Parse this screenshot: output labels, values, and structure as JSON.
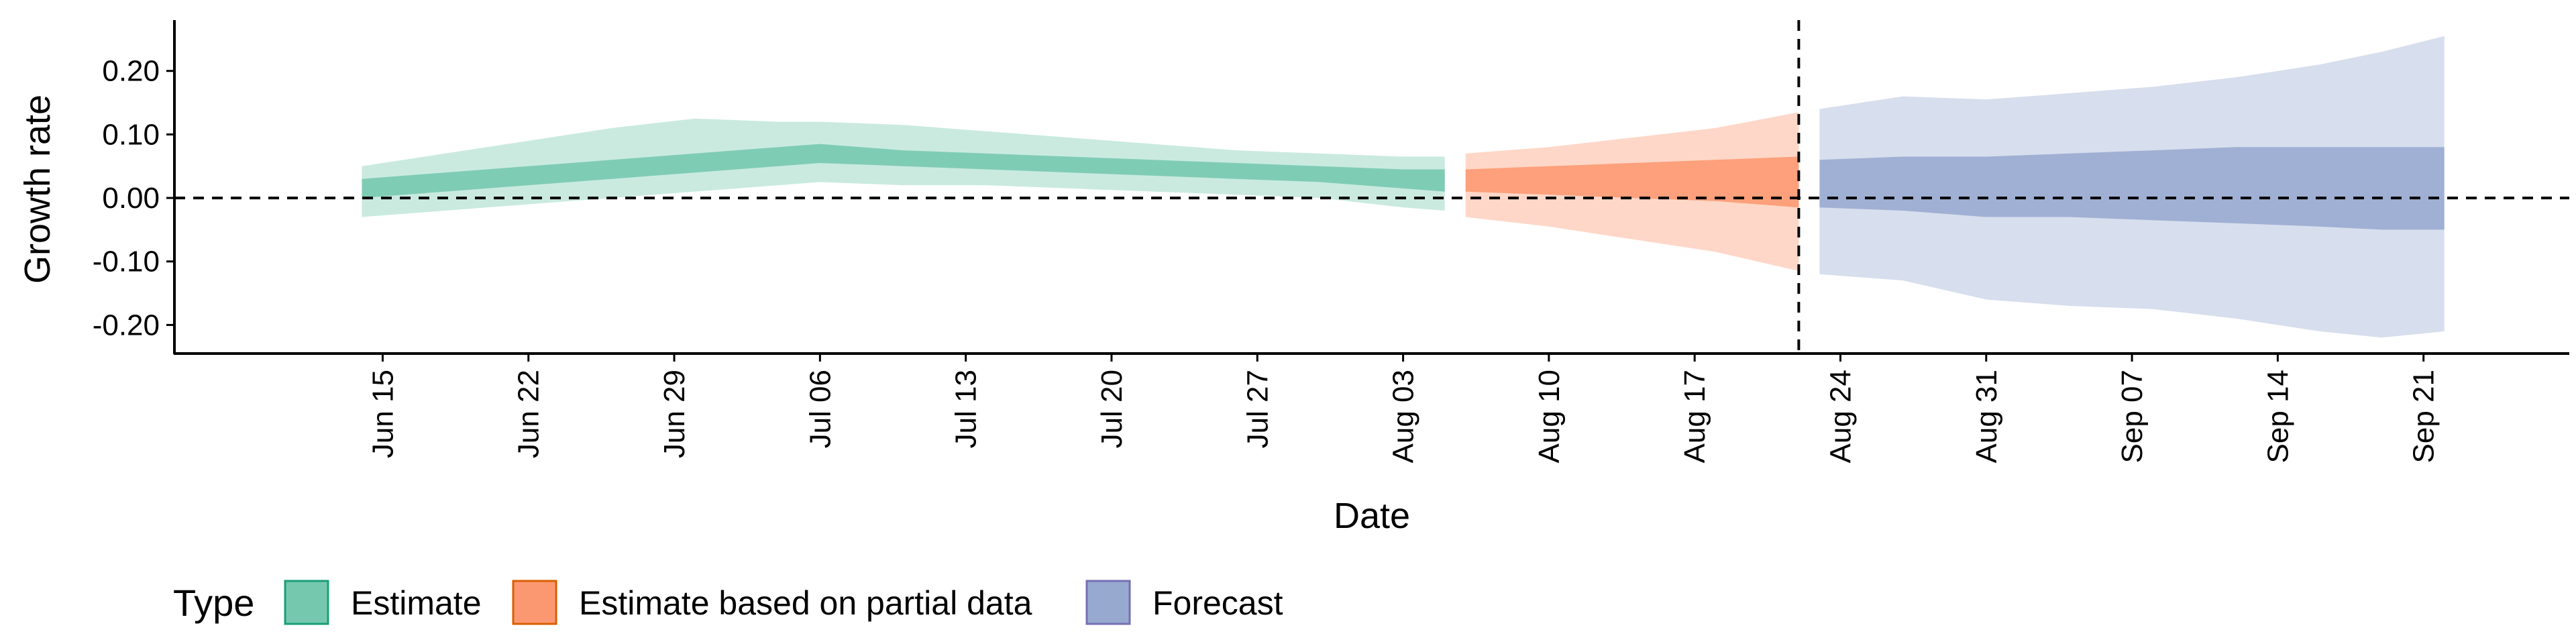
{
  "chart_data": {
    "type": "area",
    "xlabel": "Date",
    "ylabel": "Growth rate",
    "ylim": [
      -0.245,
      0.28
    ],
    "xlim": [
      "2020-06-05",
      "2020-09-28"
    ],
    "y_ticks": [
      -0.2,
      -0.1,
      0.0,
      0.1,
      0.2
    ],
    "y_tick_labels": [
      "-0.20",
      "-0.10",
      "0.00",
      "0.10",
      "0.20"
    ],
    "x_ticks": [
      "2020-06-15",
      "2020-06-22",
      "2020-06-29",
      "2020-07-06",
      "2020-07-13",
      "2020-07-20",
      "2020-07-27",
      "2020-08-03",
      "2020-08-10",
      "2020-08-17",
      "2020-08-24",
      "2020-08-31",
      "2020-09-07",
      "2020-09-14",
      "2020-09-21"
    ],
    "x_tick_labels": [
      "Jun 15",
      "Jun 22",
      "Jun 29",
      "Jul 06",
      "Jul 13",
      "Jul 20",
      "Jul 27",
      "Aug 03",
      "Aug 10",
      "Aug 17",
      "Aug 24",
      "Aug 31",
      "Sep 07",
      "Sep 14",
      "Sep 21"
    ],
    "hline": 0.0,
    "vline": "2020-08-22",
    "grid": false,
    "legend_position": "bottom-left",
    "legend_title": "Type",
    "series": [
      {
        "name": "Estimate",
        "fill_color": "#66c2a5",
        "border_color": "#1b9e77",
        "points": [
          {
            "x": "2020-06-14",
            "lo90": -0.03,
            "lo50": 0.0,
            "hi50": 0.03,
            "hi90": 0.05
          },
          {
            "x": "2020-06-18",
            "lo90": -0.02,
            "lo50": 0.01,
            "hi50": 0.04,
            "hi90": 0.07
          },
          {
            "x": "2020-06-22",
            "lo90": -0.01,
            "lo50": 0.02,
            "hi50": 0.05,
            "hi90": 0.09
          },
          {
            "x": "2020-06-26",
            "lo90": 0.0,
            "lo50": 0.03,
            "hi50": 0.06,
            "hi90": 0.11
          },
          {
            "x": "2020-06-30",
            "lo90": 0.01,
            "lo50": 0.04,
            "hi50": 0.07,
            "hi90": 0.125
          },
          {
            "x": "2020-07-04",
            "lo90": 0.02,
            "lo50": 0.05,
            "hi50": 0.08,
            "hi90": 0.12
          },
          {
            "x": "2020-07-06",
            "lo90": 0.025,
            "lo50": 0.055,
            "hi50": 0.085,
            "hi90": 0.12
          },
          {
            "x": "2020-07-10",
            "lo90": 0.02,
            "lo50": 0.05,
            "hi50": 0.075,
            "hi90": 0.115
          },
          {
            "x": "2020-07-14",
            "lo90": 0.02,
            "lo50": 0.045,
            "hi50": 0.07,
            "hi90": 0.105
          },
          {
            "x": "2020-07-18",
            "lo90": 0.015,
            "lo50": 0.04,
            "hi50": 0.065,
            "hi90": 0.095
          },
          {
            "x": "2020-07-22",
            "lo90": 0.01,
            "lo50": 0.035,
            "hi50": 0.06,
            "hi90": 0.085
          },
          {
            "x": "2020-07-26",
            "lo90": 0.005,
            "lo50": 0.03,
            "hi50": 0.055,
            "hi90": 0.075
          },
          {
            "x": "2020-07-30",
            "lo90": 0.0,
            "lo50": 0.025,
            "hi50": 0.05,
            "hi90": 0.07
          },
          {
            "x": "2020-08-03",
            "lo90": -0.015,
            "lo50": 0.015,
            "hi50": 0.045,
            "hi90": 0.065
          },
          {
            "x": "2020-08-05",
            "lo90": -0.02,
            "lo50": 0.01,
            "hi50": 0.045,
            "hi90": 0.065
          }
        ]
      },
      {
        "name": "Estimate based on partial data",
        "fill_color": "#fc8d62",
        "border_color": "#d95f02",
        "points": [
          {
            "x": "2020-08-06",
            "lo90": -0.03,
            "lo50": 0.01,
            "hi50": 0.045,
            "hi90": 0.07
          },
          {
            "x": "2020-08-10",
            "lo90": -0.045,
            "lo50": 0.005,
            "hi50": 0.05,
            "hi90": 0.08
          },
          {
            "x": "2020-08-14",
            "lo90": -0.065,
            "lo50": 0.0,
            "hi50": 0.055,
            "hi90": 0.095
          },
          {
            "x": "2020-08-18",
            "lo90": -0.085,
            "lo50": -0.005,
            "hi50": 0.06,
            "hi90": 0.11
          },
          {
            "x": "2020-08-22",
            "lo90": -0.115,
            "lo50": -0.015,
            "hi50": 0.065,
            "hi90": 0.135
          }
        ]
      },
      {
        "name": "Forecast",
        "fill_color": "#8da0cb",
        "border_color": "#7570b3",
        "points": [
          {
            "x": "2020-08-23",
            "lo90": -0.12,
            "lo50": -0.015,
            "hi50": 0.06,
            "hi90": 0.14
          },
          {
            "x": "2020-08-27",
            "lo90": -0.13,
            "lo50": -0.02,
            "hi50": 0.065,
            "hi90": 0.16
          },
          {
            "x": "2020-08-31",
            "lo90": -0.16,
            "lo50": -0.03,
            "hi50": 0.065,
            "hi90": 0.155
          },
          {
            "x": "2020-09-04",
            "lo90": -0.17,
            "lo50": -0.03,
            "hi50": 0.07,
            "hi90": 0.165
          },
          {
            "x": "2020-09-08",
            "lo90": -0.175,
            "lo50": -0.035,
            "hi50": 0.075,
            "hi90": 0.175
          },
          {
            "x": "2020-09-12",
            "lo90": -0.19,
            "lo50": -0.04,
            "hi50": 0.08,
            "hi90": 0.19
          },
          {
            "x": "2020-09-16",
            "lo90": -0.21,
            "lo50": -0.045,
            "hi50": 0.08,
            "hi90": 0.21
          },
          {
            "x": "2020-09-19",
            "lo90": -0.22,
            "lo50": -0.05,
            "hi50": 0.08,
            "hi90": 0.23
          },
          {
            "x": "2020-09-22",
            "lo90": -0.21,
            "lo50": -0.05,
            "hi50": 0.08,
            "hi90": 0.255
          }
        ]
      }
    ]
  }
}
